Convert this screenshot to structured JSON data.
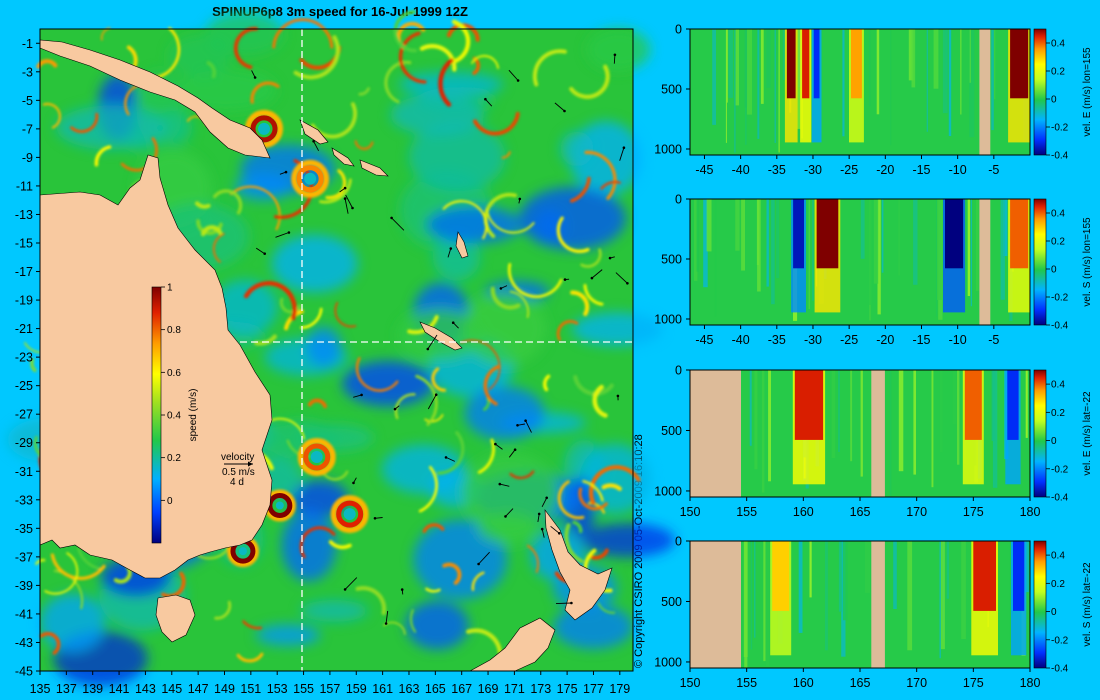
{
  "title": "SPINUP6p8 3m speed for 16-Jul-1999 12Z",
  "copyright": "© Copyright CSIRO 2009   05-Oct-2009 16:10:28",
  "colors": {
    "background": "#00c8ff",
    "land": "#f8c9a0",
    "section_land": "#ddbb99",
    "ocean_base": "#29c43a",
    "frame": "#000000",
    "guide_line": "#ffffff"
  },
  "chart_data": [
    {
      "type": "heatmap",
      "title": "SPINUP6p8 3m speed for 16-Jul-1999 12Z",
      "xlabel": "",
      "ylabel": "",
      "xlim": [
        135,
        180
      ],
      "ylim": [
        -45,
        0
      ],
      "x_ticks": [
        135,
        137,
        139,
        141,
        143,
        145,
        147,
        149,
        151,
        153,
        155,
        157,
        159,
        161,
        163,
        165,
        167,
        169,
        171,
        173,
        175,
        177,
        179
      ],
      "y_ticks": [
        -1,
        -3,
        -5,
        -7,
        -9,
        -11,
        -13,
        -15,
        -17,
        -19,
        -21,
        -23,
        -25,
        -27,
        -29,
        -31,
        -33,
        -35,
        -37,
        -39,
        -41,
        -43,
        -45
      ],
      "guide_lines": {
        "lon": 155,
        "lat": -22
      },
      "colorbar": {
        "label": "speed (m/s)",
        "range": [
          -0.2,
          1
        ],
        "ticks": [
          0,
          0.2,
          0.4,
          0.6,
          0.8,
          1
        ]
      },
      "vector_key": {
        "title": "velocity",
        "speed_text": "0.5 m/s",
        "time_text": "4 d"
      },
      "eddies": [
        {
          "lon": 153.2,
          "lat": -33.4,
          "speed": 1.0
        },
        {
          "lon": 150.4,
          "lat": -36.6,
          "speed": 1.0
        },
        {
          "lon": 152.0,
          "lat": -7.0,
          "speed": 0.95
        },
        {
          "lon": 158.5,
          "lat": -34.0,
          "speed": 0.9
        },
        {
          "lon": 156.0,
          "lat": -30.0,
          "speed": 0.85
        },
        {
          "lon": 155.5,
          "lat": -10.5,
          "speed": 0.8
        }
      ]
    },
    {
      "type": "heatmap",
      "title": "",
      "xlabel": "",
      "ylabel": "vel. E (m/s) lon=155",
      "xlim": [
        -47,
        0
      ],
      "ylim": [
        1050,
        0
      ],
      "x_ticks": [
        -45,
        -40,
        -35,
        -30,
        -25,
        -20,
        -15,
        -10,
        -5
      ],
      "y_ticks": [
        0,
        500,
        1000
      ],
      "colorbar": {
        "range": [
          -0.4,
          0.5
        ],
        "ticks": [
          -0.4,
          -0.2,
          0,
          0.2,
          0.4
        ]
      },
      "land_bands": [
        [
          -7,
          -5.5
        ]
      ],
      "features": [
        {
          "x": -33,
          "width": 1.2,
          "value": 0.5
        },
        {
          "x": -31,
          "width": 1.0,
          "value": 0.45
        },
        {
          "x": -29.5,
          "width": 0.8,
          "value": -0.3
        },
        {
          "x": -24,
          "width": 1.5,
          "value": 0.35
        },
        {
          "x": -1.5,
          "width": 2.5,
          "value": 0.5
        }
      ]
    },
    {
      "type": "heatmap",
      "title": "",
      "xlabel": "",
      "ylabel": "vel. S (m/s) lon=155",
      "xlim": [
        -47,
        0
      ],
      "ylim": [
        1050,
        0
      ],
      "x_ticks": [
        -45,
        -40,
        -35,
        -30,
        -25,
        -20,
        -15,
        -10,
        -5
      ],
      "y_ticks": [
        0,
        500,
        1000
      ],
      "colorbar": {
        "range": [
          -0.4,
          0.5
        ],
        "ticks": [
          -0.4,
          -0.2,
          0,
          0.2,
          0.4
        ]
      },
      "land_bands": [
        [
          -7,
          -5.5
        ]
      ],
      "features": [
        {
          "x": -32,
          "width": 1.5,
          "value": -0.35
        },
        {
          "x": -28,
          "width": 3.0,
          "value": 0.5
        },
        {
          "x": -10.5,
          "width": 2.5,
          "value": -0.45
        },
        {
          "x": -1.5,
          "width": 2.5,
          "value": 0.4
        }
      ]
    },
    {
      "type": "heatmap",
      "title": "",
      "xlabel": "",
      "ylabel": "vel. E (m/s) lat=-22",
      "xlim": [
        150,
        180
      ],
      "ylim": [
        1050,
        0
      ],
      "x_ticks": [
        150,
        155,
        160,
        165,
        170,
        175,
        180
      ],
      "y_ticks": [
        0,
        500,
        1000
      ],
      "colorbar": {
        "range": [
          -0.4,
          0.5
        ],
        "ticks": [
          -0.4,
          -0.2,
          0,
          0.2,
          0.4
        ]
      },
      "land_bands": [
        [
          150,
          154.5
        ],
        [
          166,
          167.2
        ]
      ],
      "features": [
        {
          "x": 160.5,
          "width": 2.5,
          "value": 0.45
        },
        {
          "x": 175,
          "width": 1.5,
          "value": 0.4
        },
        {
          "x": 178.5,
          "width": 1.0,
          "value": -0.3
        }
      ]
    },
    {
      "type": "heatmap",
      "title": "",
      "xlabel": "",
      "ylabel": "vel. S (m/s) lat=-22",
      "xlim": [
        150,
        180
      ],
      "ylim": [
        1050,
        0
      ],
      "x_ticks": [
        150,
        155,
        160,
        165,
        170,
        175,
        180
      ],
      "y_ticks": [
        0,
        500,
        1000
      ],
      "colorbar": {
        "range": [
          -0.4,
          0.5
        ],
        "ticks": [
          -0.4,
          -0.2,
          0,
          0.2,
          0.4
        ]
      },
      "land_bands": [
        [
          150,
          154.5
        ],
        [
          166,
          167.2
        ]
      ],
      "features": [
        {
          "x": 158,
          "width": 1.5,
          "value": 0.3
        },
        {
          "x": 176,
          "width": 2.0,
          "value": 0.45
        },
        {
          "x": 179,
          "width": 1.0,
          "value": -0.3
        }
      ]
    }
  ]
}
